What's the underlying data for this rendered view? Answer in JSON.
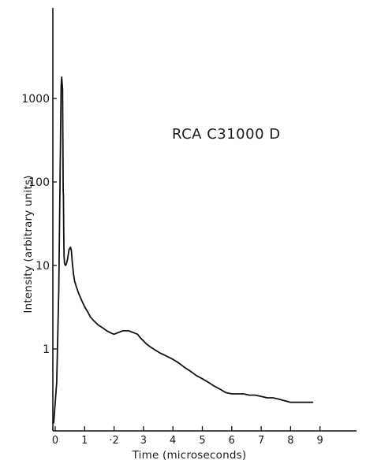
{
  "chart_data": {
    "type": "line",
    "title": "",
    "annotation": "RCA  C31000 D",
    "xlabel": "Time (microseconds)",
    "ylabel": "Intensity (arbitrary units)",
    "xlim": [
      0,
      9
    ],
    "ylim": [
      0.1,
      10000
    ],
    "yscale": "log",
    "grid": false,
    "x_ticks": [
      {
        "value": 0,
        "label": "0"
      },
      {
        "value": 1,
        "label": "1"
      },
      {
        "value": 2,
        "label": "·2"
      },
      {
        "value": 3,
        "label": "3"
      },
      {
        "value": 4,
        "label": "4"
      },
      {
        "value": 5,
        "label": "5"
      },
      {
        "value": 6,
        "label": "6"
      },
      {
        "value": 7,
        "label": "7"
      },
      {
        "value": 8,
        "label": "8"
      },
      {
        "value": 9,
        "label": "9"
      }
    ],
    "y_ticks": [
      {
        "value": 1,
        "label": "1"
      },
      {
        "value": 10,
        "label": "10"
      },
      {
        "value": 100,
        "label": "100"
      },
      {
        "value": 1000,
        "label": "1000"
      }
    ],
    "series": [
      {
        "x": [
          -0.05,
          0.05,
          0.12,
          0.18,
          0.2,
          0.22,
          0.25,
          0.27,
          0.28,
          0.29,
          0.3,
          0.32,
          0.35,
          0.38,
          0.42,
          0.47,
          0.52,
          0.55,
          0.58,
          0.62,
          0.66,
          0.72,
          0.8,
          0.9,
          1.0,
          1.1,
          1.2,
          1.3,
          1.45,
          1.6,
          1.75,
          1.9,
          2.0,
          2.1,
          2.2,
          2.3,
          2.4,
          2.5,
          2.6,
          2.7,
          2.8,
          2.9,
          3.0,
          3.1,
          3.25,
          3.4,
          3.55,
          3.7,
          3.85,
          4.0,
          4.2,
          4.4,
          4.6,
          4.8,
          5.0,
          5.2,
          5.4,
          5.6,
          5.8,
          6.0,
          6.2,
          6.4,
          6.6,
          6.8,
          7.0,
          7.2,
          7.4,
          7.6,
          7.8,
          8.0,
          8.2,
          8.4,
          8.6,
          8.75
        ],
        "y": [
          0.13,
          0.4,
          5,
          300,
          1400,
          1800,
          1300,
          80,
          70,
          25,
          13,
          10.5,
          10,
          10.5,
          12,
          15.5,
          16.5,
          15,
          11,
          8,
          6.5,
          5.5,
          4.6,
          3.8,
          3.2,
          2.8,
          2.4,
          2.2,
          1.95,
          1.8,
          1.65,
          1.55,
          1.5,
          1.55,
          1.6,
          1.65,
          1.65,
          1.65,
          1.6,
          1.55,
          1.5,
          1.35,
          1.25,
          1.15,
          1.05,
          0.97,
          0.9,
          0.85,
          0.8,
          0.75,
          0.68,
          0.6,
          0.54,
          0.48,
          0.44,
          0.4,
          0.36,
          0.33,
          0.3,
          0.29,
          0.29,
          0.29,
          0.28,
          0.28,
          0.27,
          0.26,
          0.26,
          0.25,
          0.24,
          0.23,
          0.23,
          0.23,
          0.23,
          0.23
        ]
      }
    ]
  }
}
